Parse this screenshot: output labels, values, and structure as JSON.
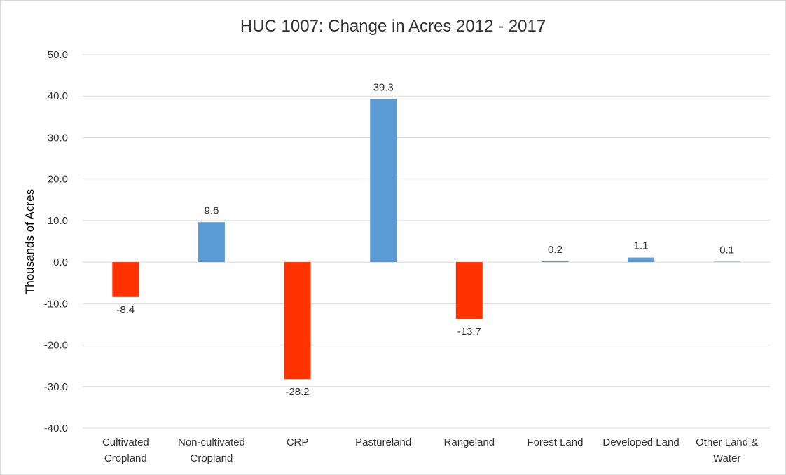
{
  "chart_data": {
    "type": "bar",
    "title": "HUC 1007: Change in Acres 2012 - 2017",
    "ylabel": "Thousands of Acres",
    "xlabel": "",
    "ylim": [
      -40,
      50
    ],
    "yticks": [
      "50.0",
      "40.0",
      "30.0",
      "20.0",
      "10.0",
      "0.0",
      "-10.0",
      "-20.0",
      "-30.0",
      "-40.0"
    ],
    "ytick_values": [
      50,
      40,
      30,
      20,
      10,
      0,
      -10,
      -20,
      -30,
      -40
    ],
    "grid": true,
    "legend": "none",
    "categories": [
      [
        "Cultivated",
        "Cropland"
      ],
      [
        "Non-cultivated",
        "Cropland"
      ],
      [
        "CRP"
      ],
      [
        "Pastureland"
      ],
      [
        "Rangeland"
      ],
      [
        "Forest Land"
      ],
      [
        "Developed Land"
      ],
      [
        "Other Land &",
        "Water"
      ]
    ],
    "values": [
      -8.4,
      9.6,
      -28.2,
      39.3,
      -13.7,
      0.2,
      1.1,
      0.1
    ],
    "data_labels": [
      "-8.4",
      "9.6",
      "-28.2",
      "39.3",
      "-13.7",
      "0.2",
      "1.1",
      "0.1"
    ],
    "colors": {
      "positive": "#5b9bd5",
      "negative": "#ff3300"
    }
  }
}
